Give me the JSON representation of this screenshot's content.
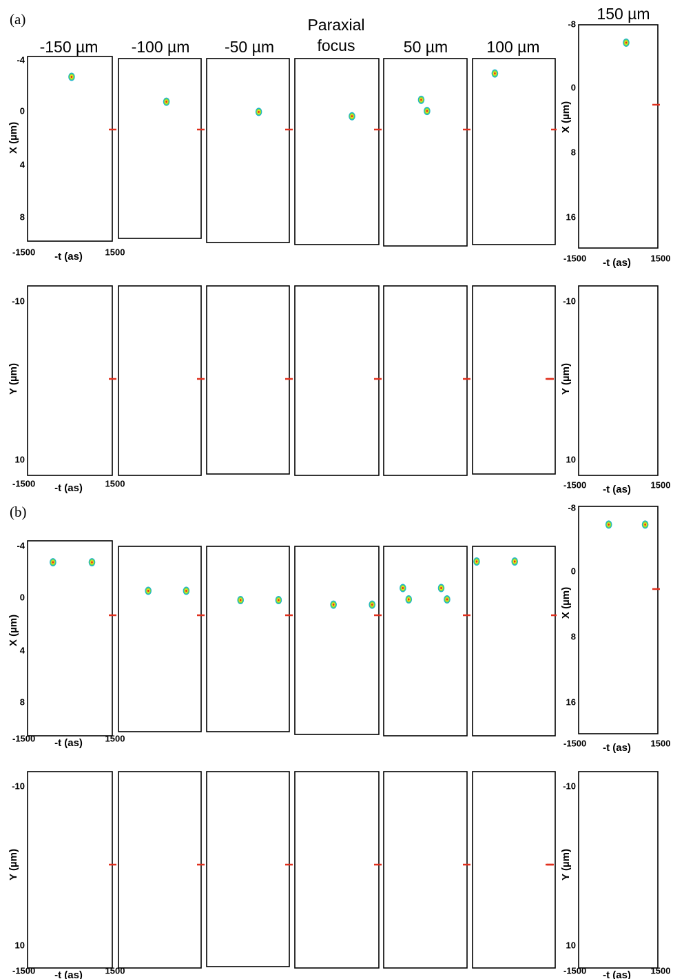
{
  "figure": {
    "panel_labels": [
      "(a)",
      "(b)"
    ],
    "column_headers": [
      [
        "-150 µm"
      ],
      [
        "-100 µm"
      ],
      [
        "-50 µm"
      ],
      [
        "Paraxial",
        "focus"
      ],
      [
        "50 µm"
      ],
      [
        "100 µm"
      ],
      [
        "150 µm"
      ]
    ],
    "rows": [
      {
        "left": {
          "axis_label": "X (µm)",
          "ticks": [
            -4,
            0,
            4,
            8
          ],
          "xticks": [
            -1500,
            1500
          ],
          "xlabel": "-t (as)"
        },
        "right": {
          "axis_label": "X (µm)",
          "ticks": [
            -8,
            0,
            8,
            16
          ],
          "xticks": [
            -1500,
            1500
          ],
          "xlabel": "-t (as)"
        }
      },
      {
        "left": {
          "axis_label": "Y (µm)",
          "ticks": [
            -10,
            10
          ],
          "xticks": [
            -1500,
            1500
          ],
          "xlabel": "-t (as)"
        },
        "right": {
          "axis_label": "Y (µm)",
          "ticks": [
            -10,
            10
          ],
          "xticks": [
            -1500,
            1500
          ],
          "xlabel": "-t (as)"
        }
      },
      {
        "left": {
          "axis_label": "X (µm)",
          "ticks": [
            -4,
            0,
            4,
            8
          ],
          "xticks": [
            -1500,
            1500
          ],
          "xlabel": "-t (as)"
        },
        "right": {
          "axis_label": "X (µm)",
          "ticks": [
            -8,
            0,
            8,
            16
          ],
          "xticks": [
            -1500,
            1500
          ],
          "xlabel": "-t (as)"
        }
      },
      {
        "left": {
          "axis_label": "Y (µm)",
          "ticks": [
            -10,
            10
          ],
          "xticks": [
            -1500,
            1500
          ],
          "xlabel": "-t (as)"
        },
        "right": {
          "axis_label": "Y (µm)",
          "ticks": [
            -10,
            10
          ],
          "xticks": [
            -1500,
            1500
          ],
          "xlabel": "-t (as)"
        }
      }
    ]
  }
}
